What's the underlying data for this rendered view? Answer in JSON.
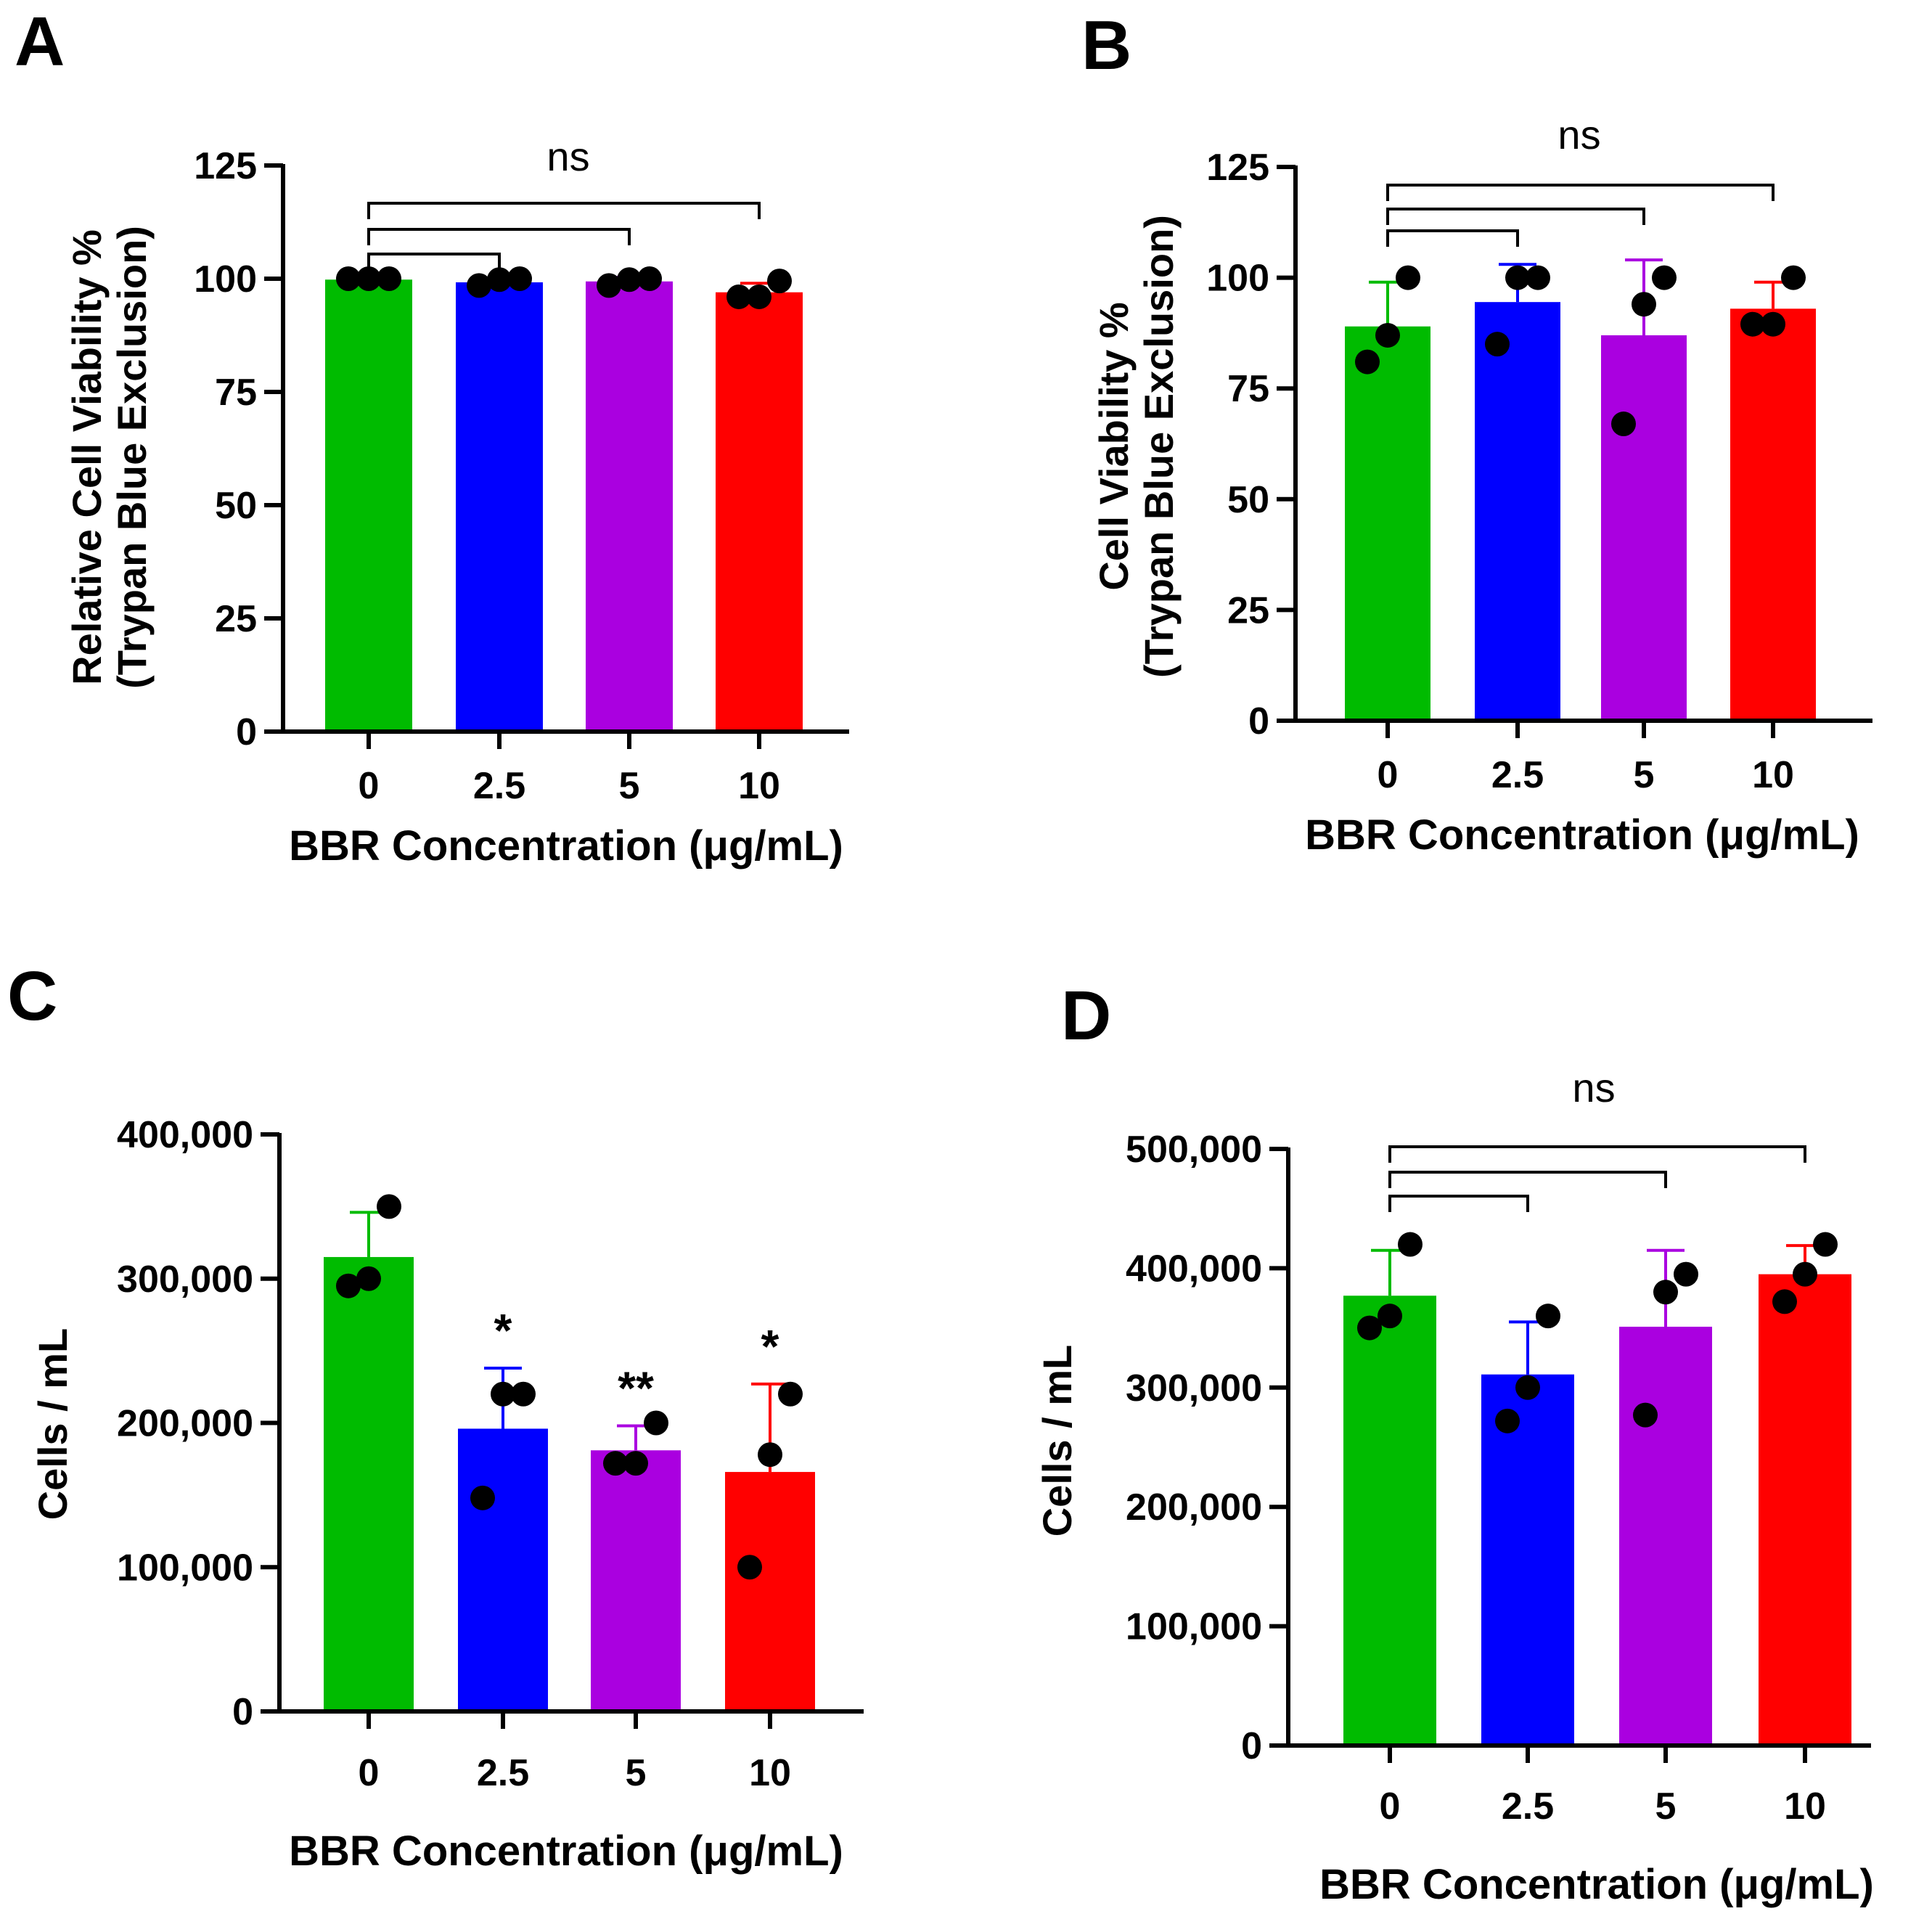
{
  "figure": {
    "colors": {
      "bars": [
        "#00bb00",
        "#0000ff",
        "#aa00e0",
        "#ff0000"
      ],
      "axis": "#000000",
      "points": "#000000"
    }
  },
  "chart_data": [
    {
      "id": "A",
      "type": "bar",
      "panel_label": "A",
      "categories": [
        "0",
        "2.5",
        "5",
        "10"
      ],
      "values": [
        99.8,
        99.2,
        99.4,
        97
      ],
      "errors": [
        0,
        0.8,
        0.9,
        2
      ],
      "points": [
        [
          100,
          100,
          100
        ],
        [
          98.5,
          99.8,
          100
        ],
        [
          98.5,
          99.8,
          100
        ],
        [
          96,
          96,
          99.5
        ]
      ],
      "xlabel": "BBR Concentration (μg/mL)",
      "ylabel": [
        "Relative Cell Viability %",
        "(Trypan Blue Exclusion)"
      ],
      "ylim": [
        0,
        125
      ],
      "yticks": [
        0,
        25,
        50,
        75,
        100,
        125
      ],
      "ytick_labels": [
        "0",
        "25",
        "50",
        "75",
        "100",
        "125"
      ],
      "significance": {
        "label": "ns",
        "brackets": [
          [
            0,
            1
          ],
          [
            0,
            2
          ],
          [
            0,
            3
          ]
        ],
        "stars": [
          "",
          "",
          "",
          ""
        ]
      }
    },
    {
      "id": "B",
      "type": "bar",
      "panel_label": "B",
      "categories": [
        "0",
        "2.5",
        "5",
        "10"
      ],
      "values": [
        89,
        94.5,
        87,
        93
      ],
      "errors": [
        10,
        8.5,
        17,
        6
      ],
      "points": [
        [
          81,
          87,
          100
        ],
        [
          85,
          100,
          100
        ],
        [
          67,
          94,
          100
        ],
        [
          89.5,
          89.5,
          100
        ]
      ],
      "xlabel": "BBR Concentration (μg/mL)",
      "ylabel": [
        "Cell Viability %",
        "(Trypan Blue Exclusion)"
      ],
      "ylim": [
        0,
        125
      ],
      "yticks": [
        0,
        25,
        50,
        75,
        100,
        125
      ],
      "ytick_labels": [
        "0",
        "25",
        "50",
        "75",
        "100",
        "125"
      ],
      "significance": {
        "label": "ns",
        "brackets": [
          [
            0,
            1
          ],
          [
            0,
            2
          ],
          [
            0,
            3
          ]
        ],
        "stars": [
          "",
          "",
          "",
          ""
        ]
      }
    },
    {
      "id": "C",
      "type": "bar",
      "panel_label": "C",
      "categories": [
        "0",
        "2.5",
        "5",
        "10"
      ],
      "values": [
        315000,
        196000,
        181000,
        166000
      ],
      "errors": [
        31000,
        42000,
        17000,
        61000
      ],
      "points": [
        [
          295000,
          300000,
          350000
        ],
        [
          148000,
          220000,
          220000
        ],
        [
          172000,
          172000,
          200000
        ],
        [
          100000,
          178000,
          220000
        ]
      ],
      "xlabel": "BBR Concentration (μg/mL)",
      "ylabel": [
        "Cells / mL"
      ],
      "ylim": [
        0,
        400000
      ],
      "yticks": [
        0,
        100000,
        200000,
        300000,
        400000
      ],
      "ytick_labels": [
        "0",
        "100,000",
        "200,000",
        "300,000",
        "400,000"
      ],
      "significance": {
        "label": "",
        "brackets": [],
        "stars": [
          "",
          "*",
          "**",
          "*"
        ]
      }
    },
    {
      "id": "D",
      "type": "bar",
      "panel_label": "D",
      "categories": [
        "0",
        "2.5",
        "5",
        "10"
      ],
      "values": [
        377000,
        311000,
        351000,
        395000
      ],
      "errors": [
        38000,
        44000,
        64000,
        24000
      ],
      "points": [
        [
          350000,
          360000,
          420000
        ],
        [
          272000,
          300000,
          360000
        ],
        [
          277000,
          380000,
          395000
        ],
        [
          372000,
          395000,
          420000
        ]
      ],
      "xlabel": "BBR Concentration (μg/mL)",
      "ylabel": [
        "Cells / mL"
      ],
      "ylim": [
        0,
        500000
      ],
      "yticks": [
        0,
        100000,
        200000,
        300000,
        400000,
        500000
      ],
      "ytick_labels": [
        "0",
        "100,000",
        "200,000",
        "300,000",
        "400,000",
        "500,000"
      ],
      "significance": {
        "label": "ns",
        "brackets": [
          [
            0,
            1
          ],
          [
            0,
            2
          ],
          [
            0,
            3
          ]
        ],
        "stars": [
          "",
          "",
          "",
          ""
        ]
      }
    }
  ]
}
